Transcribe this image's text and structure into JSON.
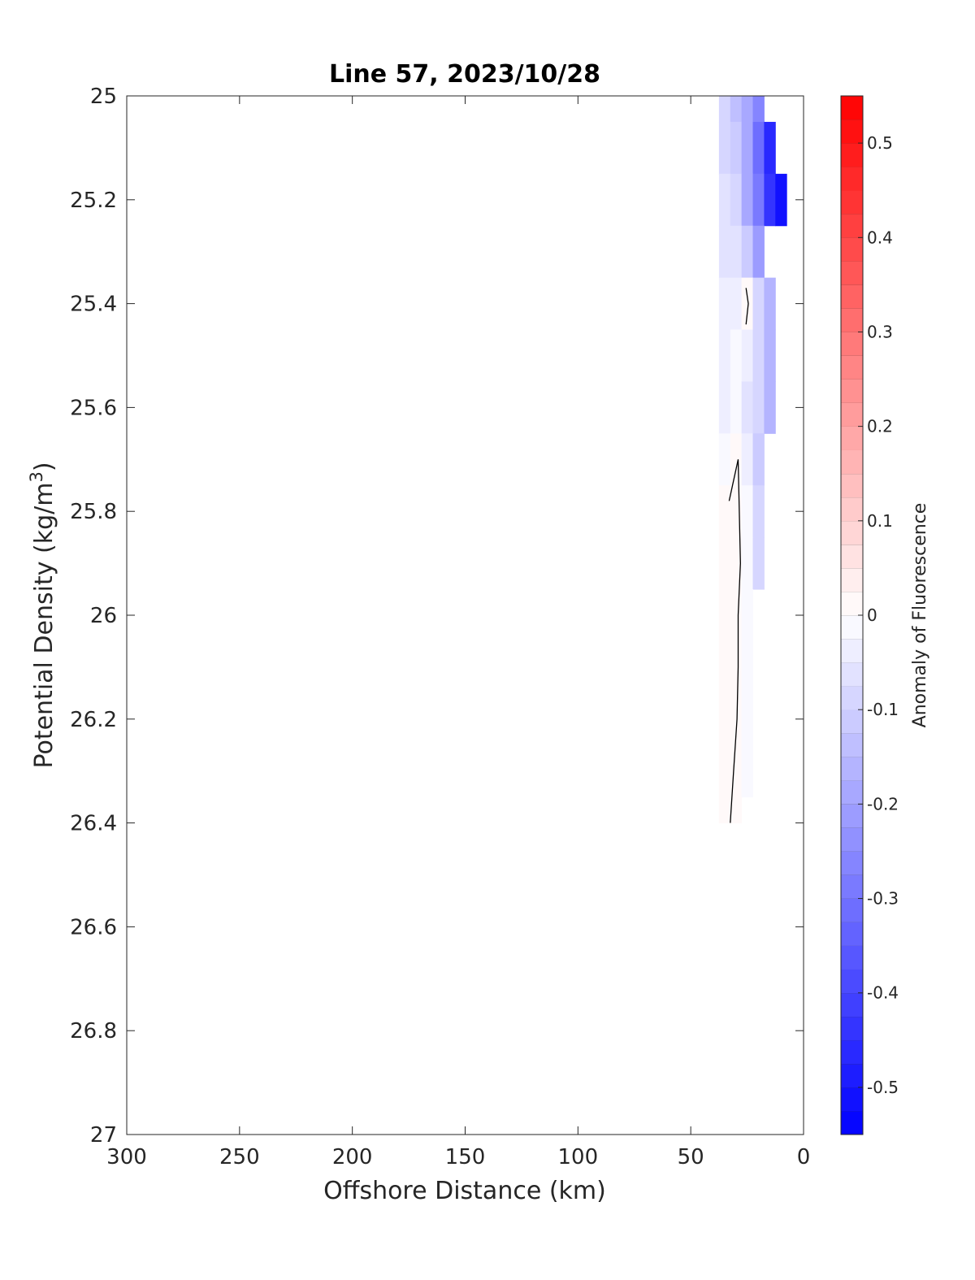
{
  "chart_data": {
    "type": "heatmap",
    "title": "Line 57, 2023/10/28",
    "xlabel": "Offshore Distance (km)",
    "ylabel_text": "Potential Density (kg/m",
    "ylabel_sup": "3",
    "ylabel_close": ")",
    "colorbar_label": "Anomaly of Fluorescence",
    "xlim": [
      300,
      0
    ],
    "ylim": [
      25,
      27
    ],
    "y_reversed": true,
    "x_reversed": true,
    "xticks": [
      300,
      250,
      200,
      150,
      100,
      50,
      0
    ],
    "xtick_labels": [
      "300",
      "250",
      "200",
      "150",
      "100",
      "50",
      "0"
    ],
    "yticks": [
      25,
      25.2,
      25.4,
      25.6,
      25.8,
      26,
      26.2,
      26.4,
      26.6,
      26.8,
      27
    ],
    "ytick_labels": [
      "25",
      "25.2",
      "25.4",
      "25.6",
      "25.8",
      "26",
      "26.2",
      "26.4",
      "26.6",
      "26.8",
      "27"
    ],
    "colorbar": {
      "range": [
        -0.55,
        0.55
      ],
      "levels": 44,
      "ticks": [
        0.5,
        0.4,
        0.3,
        0.2,
        0.1,
        0,
        -0.1,
        -0.2,
        -0.3,
        -0.4,
        -0.5
      ],
      "tick_labels": [
        "0.5",
        "0.4",
        "0.3",
        "0.2",
        "0.1",
        "0",
        "-0.1",
        "-0.2",
        "-0.3",
        "-0.4",
        "-0.5"
      ],
      "colormap": "blue-white-red",
      "neg_color": "#0000ff",
      "zero_color": "#ffffff",
      "pos_color": "#ff0000"
    },
    "field": {
      "x": [
        35,
        30,
        25,
        20,
        15,
        10
      ],
      "y": [
        25.0,
        25.1,
        25.2,
        25.3,
        25.4,
        25.5,
        25.6,
        25.7,
        25.8,
        25.9,
        26.0,
        26.1,
        26.2,
        26.3,
        26.4
      ],
      "values": [
        [
          -0.1,
          -0.14,
          -0.2,
          -0.26,
          null,
          null
        ],
        [
          -0.08,
          -0.12,
          -0.2,
          -0.32,
          -0.46,
          null
        ],
        [
          -0.07,
          -0.1,
          -0.18,
          -0.3,
          -0.44,
          -0.52
        ],
        [
          -0.06,
          -0.07,
          -0.12,
          -0.22,
          null,
          null
        ],
        [
          -0.05,
          -0.04,
          0.0,
          -0.1,
          -0.16,
          null
        ],
        [
          -0.04,
          -0.02,
          -0.04,
          -0.1,
          -0.16,
          null
        ],
        [
          -0.04,
          -0.02,
          -0.06,
          -0.1,
          -0.16,
          null
        ],
        [
          -0.02,
          0.0,
          -0.04,
          -0.12,
          null,
          null
        ],
        [
          0.0,
          0.0,
          -0.02,
          -0.1,
          null,
          null
        ],
        [
          0.01,
          0.0,
          -0.02,
          -0.08,
          null,
          null
        ],
        [
          0.01,
          0.0,
          -0.02,
          null,
          null,
          null
        ],
        [
          0.01,
          0.0,
          -0.01,
          null,
          null,
          null
        ],
        [
          0.01,
          0.0,
          -0.01,
          null,
          null,
          null
        ],
        [
          0.01,
          0.0,
          -0.01,
          null,
          null,
          null
        ],
        [
          0.0,
          0.0,
          null,
          null,
          null,
          null
        ]
      ]
    },
    "zero_contours": [
      {
        "x": [
          33,
          29,
          28.5,
          28,
          29,
          29,
          29.5,
          31,
          32.5
        ],
        "y": [
          25.78,
          25.7,
          25.8,
          25.9,
          26.0,
          26.1,
          26.2,
          26.3,
          26.4
        ]
      },
      {
        "x": [
          25.5,
          24.5,
          25.5,
          24.5,
          25.5
        ],
        "y": [
          25.37,
          25.4,
          25.44,
          25.4,
          25.37
        ]
      }
    ],
    "grid": false,
    "legend": "none"
  }
}
